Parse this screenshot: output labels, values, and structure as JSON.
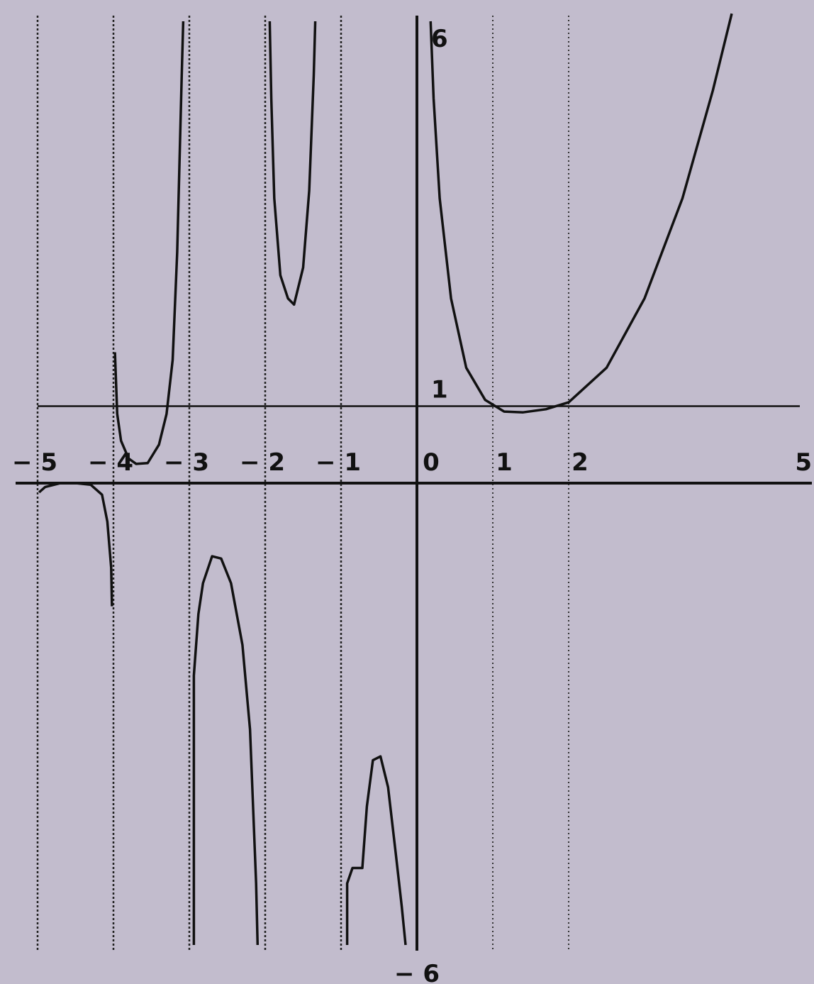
{
  "chart_data": {
    "type": "line",
    "title": "",
    "xlabel": "",
    "ylabel": "",
    "xlim": [
      -5.3,
      5
    ],
    "ylim": [
      -6,
      6
    ],
    "grid": true,
    "x_tick_labels": [
      {
        "x": -5,
        "label": "− 5"
      },
      {
        "x": -4,
        "label": "− 4"
      },
      {
        "x": -3,
        "label": "− 3"
      },
      {
        "x": -2,
        "label": "− 2"
      },
      {
        "x": -1,
        "label": "− 1"
      },
      {
        "x": 0,
        "label": "0"
      },
      {
        "x": 1,
        "label": "1"
      },
      {
        "x": 2,
        "label": "2"
      },
      {
        "x": 5,
        "label": "5"
      }
    ],
    "y_tick_labels": [
      {
        "y": 6,
        "label": "6"
      },
      {
        "y": 1,
        "label": "1"
      },
      {
        "y": -6,
        "label": "− 6"
      }
    ],
    "vertical_asymptotes": [
      -5,
      -4,
      -3,
      -2,
      -1,
      0
    ],
    "grid_lines_x": [
      1,
      2
    ],
    "horizontal_guide": {
      "y": 1,
      "x_from": -5,
      "x_to": 5
    },
    "series": [
      {
        "points": [
          [
            -4.98,
            -0.12
          ],
          [
            -4.9,
            -0.05
          ],
          [
            -4.7,
            0
          ],
          [
            -4.5,
            0
          ],
          [
            -4.3,
            -0.02
          ],
          [
            -4.15,
            -0.15
          ],
          [
            -4.08,
            -0.5
          ],
          [
            -4.03,
            -1.1
          ],
          [
            -4.02,
            -1.6
          ]
        ]
      },
      {
        "points": [
          [
            -3.98,
            1.7
          ],
          [
            -3.95,
            0.9
          ],
          [
            -3.9,
            0.55
          ],
          [
            -3.8,
            0.32
          ],
          [
            -3.7,
            0.25
          ],
          [
            -3.55,
            0.26
          ],
          [
            -3.4,
            0.5
          ],
          [
            -3.3,
            0.9
          ],
          [
            -3.22,
            1.6
          ],
          [
            -3.16,
            3.0
          ],
          [
            -3.1,
            5.3
          ],
          [
            -3.08,
            6
          ]
        ]
      },
      {
        "points": [
          [
            -2.94,
            -6
          ],
          [
            -2.94,
            -2.5
          ],
          [
            -2.88,
            -1.7
          ],
          [
            -2.82,
            -1.3
          ],
          [
            -2.7,
            -0.95
          ],
          [
            -2.58,
            -0.98
          ],
          [
            -2.45,
            -1.3
          ],
          [
            -2.3,
            -2.1
          ],
          [
            -2.2,
            -3.2
          ],
          [
            -2.12,
            -5.2
          ],
          [
            -2.1,
            -6
          ]
        ]
      },
      {
        "points": [
          [
            -1.94,
            6
          ],
          [
            -1.92,
            5.0
          ],
          [
            -1.88,
            3.7
          ],
          [
            -1.8,
            2.7
          ],
          [
            -1.7,
            2.4
          ],
          [
            -1.62,
            2.32
          ],
          [
            -1.5,
            2.8
          ],
          [
            -1.42,
            3.8
          ],
          [
            -1.36,
            5.3
          ],
          [
            -1.34,
            6
          ]
        ]
      },
      {
        "points": [
          [
            -0.92,
            -6
          ],
          [
            -0.92,
            -5.2
          ],
          [
            -0.85,
            -5.0
          ],
          [
            -0.78,
            -5.0
          ],
          [
            -0.72,
            -5.0
          ],
          [
            -0.66,
            -4.2
          ],
          [
            -0.58,
            -3.6
          ],
          [
            -0.48,
            -3.55
          ],
          [
            -0.38,
            -3.95
          ],
          [
            -0.28,
            -4.8
          ],
          [
            -0.2,
            -5.5
          ],
          [
            -0.15,
            -6
          ]
        ]
      },
      {
        "points": [
          [
            0.18,
            6
          ],
          [
            0.22,
            5.0
          ],
          [
            0.3,
            3.7
          ],
          [
            0.45,
            2.4
          ],
          [
            0.65,
            1.5
          ],
          [
            0.9,
            1.08
          ],
          [
            1.15,
            0.93
          ],
          [
            1.4,
            0.92
          ],
          [
            1.7,
            0.96
          ],
          [
            2.0,
            1.05
          ],
          [
            2.5,
            1.5
          ],
          [
            3.0,
            2.4
          ],
          [
            3.5,
            3.7
          ],
          [
            3.9,
            5.1
          ],
          [
            4.15,
            6.1
          ]
        ]
      }
    ]
  }
}
